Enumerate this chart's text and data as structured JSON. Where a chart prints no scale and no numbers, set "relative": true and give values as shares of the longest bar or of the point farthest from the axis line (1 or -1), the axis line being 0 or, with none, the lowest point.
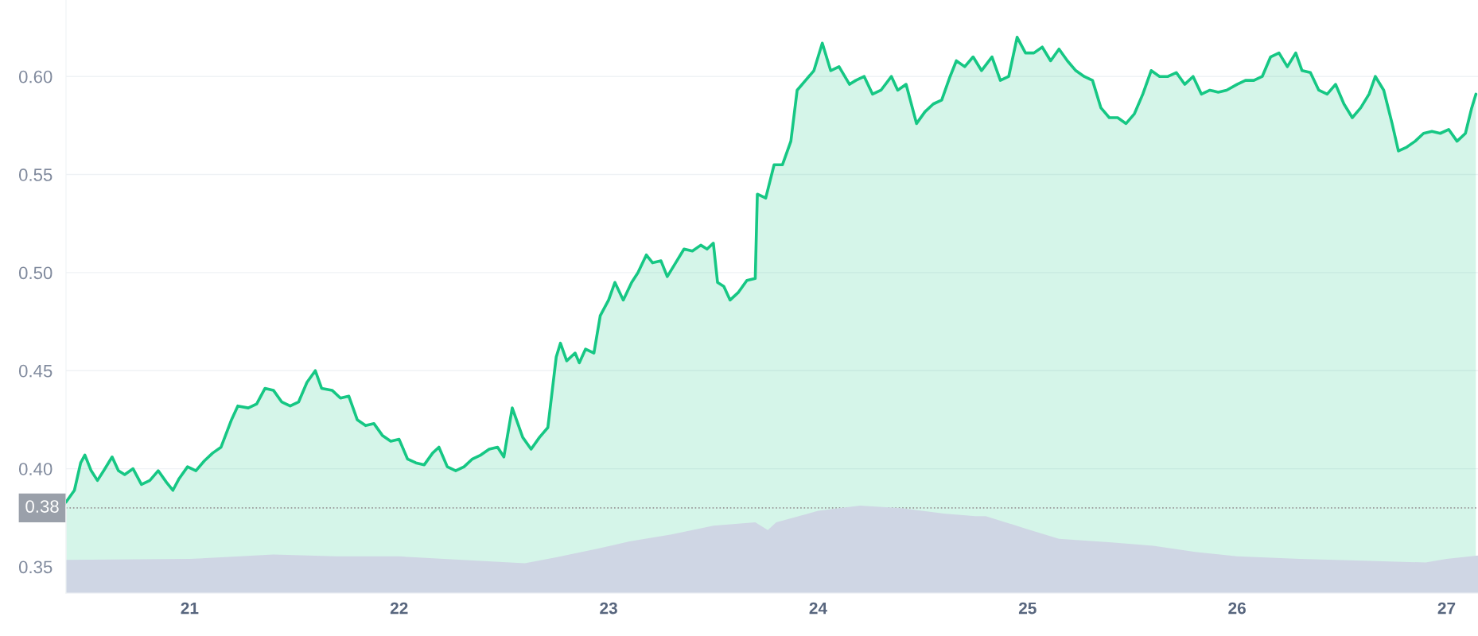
{
  "chart_data": [
    {
      "type": "area",
      "xlim": [
        20.41,
        27.15
      ],
      "xticks": [
        21,
        22,
        23,
        24,
        25,
        26,
        27
      ],
      "ylim": [
        0.3366,
        0.639
      ],
      "yticks": [
        {
          "value": 0.35,
          "label": "0.35"
        },
        {
          "value": 0.4,
          "label": "0.40"
        },
        {
          "value": 0.45,
          "label": "0.45"
        },
        {
          "value": 0.5,
          "label": "0.50"
        },
        {
          "value": 0.55,
          "label": "0.55"
        },
        {
          "value": 0.6,
          "label": "0.60"
        }
      ],
      "grid": "y",
      "tick_labels": "y",
      "ref_lines": [
        {
          "axis": "y",
          "value": 0.38,
          "label": "0.38",
          "color": "#999999",
          "line_style": "dotted"
        }
      ],
      "series": [
        {
          "color": "#16c784",
          "x": [
            20.41,
            20.45,
            20.48,
            20.5,
            20.53,
            20.56,
            20.59,
            20.63,
            20.66,
            20.69,
            20.73,
            20.77,
            20.81,
            20.85,
            20.89,
            20.92,
            20.95,
            20.99,
            21.03,
            21.07,
            21.11,
            21.15,
            21.2,
            21.23,
            21.28,
            21.32,
            21.36,
            21.4,
            21.44,
            21.48,
            21.52,
            21.56,
            21.6,
            21.63,
            21.68,
            21.72,
            21.76,
            21.8,
            21.84,
            21.88,
            21.92,
            21.96,
            22.0,
            22.04,
            22.08,
            22.12,
            22.16,
            22.19,
            22.23,
            22.27,
            22.31,
            22.35,
            22.39,
            22.43,
            22.47,
            22.5,
            22.54,
            22.56,
            22.59,
            22.63,
            22.67,
            22.71,
            22.75,
            22.77,
            22.8,
            22.84,
            22.86,
            22.89,
            22.93,
            22.96,
            23.0,
            23.03,
            23.07,
            23.11,
            23.14,
            23.18,
            23.21,
            23.25,
            23.28,
            23.32,
            23.36,
            23.4,
            23.44,
            23.47,
            23.5,
            23.52,
            23.55,
            23.58,
            23.62,
            23.66,
            23.7,
            23.71,
            23.75,
            23.79,
            23.83,
            23.87,
            23.9,
            23.94,
            23.98,
            24.02,
            24.06,
            24.1,
            24.15,
            24.18,
            24.22,
            24.26,
            24.3,
            24.35,
            24.38,
            24.42,
            24.47,
            24.51,
            24.55,
            24.59,
            24.63,
            24.66,
            24.7,
            24.74,
            24.78,
            24.83,
            24.87,
            24.91,
            24.95,
            24.99,
            25.03,
            25.07,
            25.11,
            25.15,
            25.19,
            25.23,
            25.27,
            25.31,
            25.35,
            25.39,
            25.43,
            25.47,
            25.51,
            25.55,
            25.59,
            25.63,
            25.67,
            25.71,
            25.75,
            25.79,
            25.83,
            25.87,
            25.91,
            25.95,
            26.0,
            26.04,
            26.08,
            26.12,
            26.16,
            26.2,
            26.24,
            26.28,
            26.31,
            26.35,
            26.39,
            26.43,
            26.47,
            26.51,
            26.55,
            26.59,
            26.63,
            26.66,
            26.7,
            26.74,
            26.77,
            26.81,
            26.85,
            26.89,
            26.93,
            26.97,
            27.01,
            27.05,
            27.09,
            27.12,
            27.14
          ],
          "values": [
            0.383,
            0.389,
            0.403,
            0.407,
            0.399,
            0.394,
            0.399,
            0.406,
            0.399,
            0.397,
            0.4,
            0.392,
            0.394,
            0.399,
            0.393,
            0.389,
            0.395,
            0.401,
            0.399,
            0.404,
            0.408,
            0.411,
            0.425,
            0.432,
            0.431,
            0.433,
            0.441,
            0.44,
            0.434,
            0.432,
            0.434,
            0.444,
            0.45,
            0.441,
            0.44,
            0.436,
            0.437,
            0.425,
            0.422,
            0.423,
            0.417,
            0.414,
            0.415,
            0.405,
            0.403,
            0.402,
            0.408,
            0.411,
            0.401,
            0.399,
            0.401,
            0.405,
            0.407,
            0.41,
            0.411,
            0.406,
            0.431,
            0.425,
            0.416,
            0.41,
            0.416,
            0.421,
            0.457,
            0.464,
            0.455,
            0.459,
            0.454,
            0.461,
            0.459,
            0.478,
            0.486,
            0.495,
            0.486,
            0.495,
            0.5,
            0.509,
            0.505,
            0.506,
            0.498,
            0.505,
            0.512,
            0.511,
            0.514,
            0.512,
            0.515,
            0.495,
            0.493,
            0.486,
            0.49,
            0.496,
            0.497,
            0.54,
            0.538,
            0.555,
            0.555,
            0.567,
            0.593,
            0.598,
            0.603,
            0.617,
            0.603,
            0.605,
            0.596,
            0.598,
            0.6,
            0.591,
            0.593,
            0.6,
            0.593,
            0.596,
            0.576,
            0.582,
            0.586,
            0.588,
            0.6,
            0.608,
            0.605,
            0.61,
            0.603,
            0.61,
            0.598,
            0.6,
            0.62,
            0.612,
            0.612,
            0.615,
            0.608,
            0.614,
            0.608,
            0.603,
            0.6,
            0.598,
            0.584,
            0.579,
            0.579,
            0.576,
            0.581,
            0.591,
            0.603,
            0.6,
            0.6,
            0.602,
            0.596,
            0.6,
            0.591,
            0.593,
            0.592,
            0.593,
            0.596,
            0.598,
            0.598,
            0.6,
            0.61,
            0.612,
            0.605,
            0.612,
            0.603,
            0.602,
            0.593,
            0.591,
            0.596,
            0.586,
            0.579,
            0.584,
            0.591,
            0.6,
            0.593,
            0.576,
            0.562,
            0.564,
            0.567,
            0.571,
            0.572,
            0.571,
            0.573,
            0.567,
            0.571,
            0.584,
            0.591
          ]
        }
      ]
    },
    {
      "type": "area",
      "relative": true,
      "xlim": [
        20.41,
        27.15
      ],
      "xticks": [
        21,
        22,
        23,
        24,
        25,
        26,
        27
      ],
      "tick_labels": "x",
      "series": [
        {
          "color": "#cfd6e4",
          "x": [
            20.41,
            21.0,
            21.4,
            21.7,
            22.0,
            22.3,
            22.6,
            22.75,
            22.95,
            23.1,
            23.3,
            23.5,
            23.7,
            23.76,
            23.8,
            24.0,
            24.2,
            24.4,
            24.6,
            24.75,
            24.8,
            25.0,
            25.15,
            25.4,
            25.6,
            25.8,
            26.0,
            26.3,
            26.6,
            26.9,
            27.0,
            27.15
          ],
          "values": [
            0.38,
            0.39,
            0.44,
            0.42,
            0.42,
            0.38,
            0.34,
            0.41,
            0.51,
            0.59,
            0.67,
            0.77,
            0.81,
            0.72,
            0.81,
            0.94,
            1.0,
            0.97,
            0.91,
            0.88,
            0.88,
            0.73,
            0.62,
            0.58,
            0.54,
            0.47,
            0.42,
            0.39,
            0.37,
            0.35,
            0.39,
            0.43
          ]
        }
      ]
    }
  ]
}
